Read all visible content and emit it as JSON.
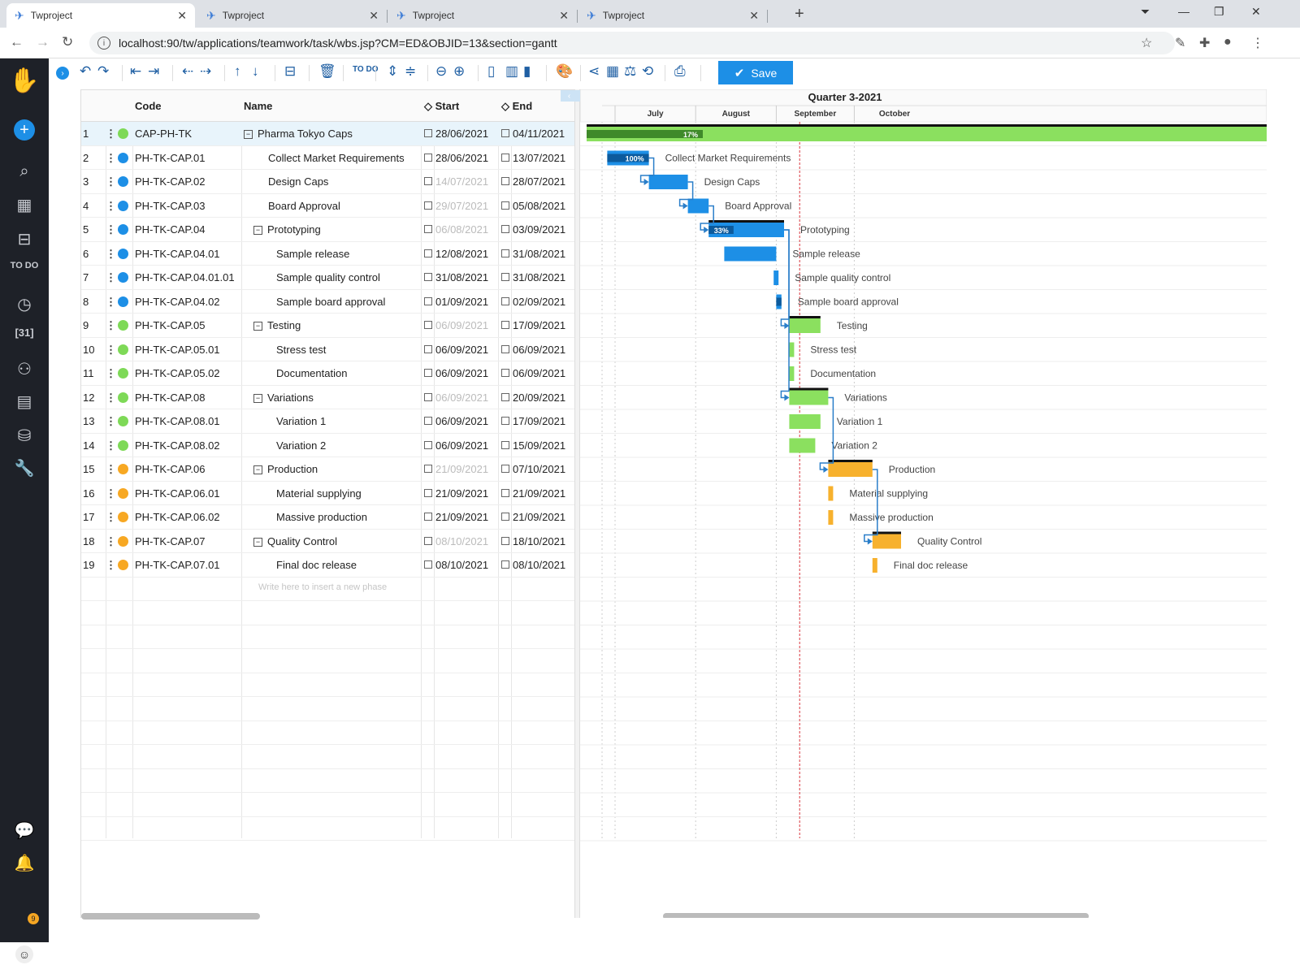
{
  "browser": {
    "tabs": [
      {
        "title": "Twproject"
      },
      {
        "title": "Twproject"
      },
      {
        "title": "Twproject"
      },
      {
        "title": "Twproject"
      }
    ],
    "url": "localhost:90/tw/applications/teamwork/task/wbs.jsp?CM=ED&OBJID=13&section=gantt"
  },
  "sidebar": {
    "items": [
      {
        "icon": "logo-icon"
      },
      {
        "icon": "add-icon"
      },
      {
        "icon": "search-icon"
      },
      {
        "icon": "dashboard-icon"
      },
      {
        "icon": "briefcase-icon"
      },
      {
        "icon": "todo-icon",
        "label": "TO DO"
      },
      {
        "icon": "clock-icon"
      },
      {
        "icon": "calendar-icon",
        "label": "31"
      },
      {
        "icon": "people-icon"
      },
      {
        "icon": "document-icon"
      },
      {
        "icon": "coins-icon"
      },
      {
        "icon": "wrench-icon"
      },
      {
        "icon": "chat-icon"
      },
      {
        "icon": "bell-icon"
      },
      {
        "icon": "avatar-icon"
      }
    ],
    "notification_count": "9"
  },
  "toolbar": {
    "save_label": "Save",
    "todo_label": "TO DO"
  },
  "grid": {
    "headers": {
      "code": "Code",
      "name": "Name",
      "start": "Start",
      "end": "End"
    },
    "rows": [
      {
        "num": "1",
        "color": "#7ed957",
        "code": "CAP-PH-TK",
        "name": "Pharma Tokyo Caps",
        "level": 0,
        "parent": true,
        "start": "28/06/2021",
        "start_grey": false,
        "end": "04/11/2021"
      },
      {
        "num": "2",
        "color": "#1d8fe6",
        "code": "PH-TK-CAP.01",
        "name": "Collect Market Requirements",
        "level": 1,
        "parent": false,
        "start": "28/06/2021",
        "start_grey": false,
        "end": "13/07/2021"
      },
      {
        "num": "3",
        "color": "#1d8fe6",
        "code": "PH-TK-CAP.02",
        "name": "Design Caps",
        "level": 1,
        "parent": false,
        "start": "14/07/2021",
        "start_grey": true,
        "end": "28/07/2021"
      },
      {
        "num": "4",
        "color": "#1d8fe6",
        "code": "PH-TK-CAP.03",
        "name": "Board Approval",
        "level": 1,
        "parent": false,
        "start": "29/07/2021",
        "start_grey": true,
        "end": "05/08/2021"
      },
      {
        "num": "5",
        "color": "#1d8fe6",
        "code": "PH-TK-CAP.04",
        "name": "Prototyping",
        "level": 1,
        "parent": true,
        "start": "06/08/2021",
        "start_grey": true,
        "end": "03/09/2021"
      },
      {
        "num": "6",
        "color": "#1d8fe6",
        "code": "PH-TK-CAP.04.01",
        "name": "Sample release",
        "level": 2,
        "parent": false,
        "start": "12/08/2021",
        "start_grey": false,
        "end": "31/08/2021"
      },
      {
        "num": "7",
        "color": "#1d8fe6",
        "code": "PH-TK-CAP.04.01.01",
        "name": "Sample quality control",
        "level": 2,
        "parent": false,
        "start": "31/08/2021",
        "start_grey": false,
        "end": "31/08/2021"
      },
      {
        "num": "8",
        "color": "#1d8fe6",
        "code": "PH-TK-CAP.04.02",
        "name": "Sample board approval",
        "level": 2,
        "parent": false,
        "start": "01/09/2021",
        "start_grey": false,
        "end": "02/09/2021"
      },
      {
        "num": "9",
        "color": "#7ed957",
        "code": "PH-TK-CAP.05",
        "name": "Testing",
        "level": 1,
        "parent": true,
        "start": "06/09/2021",
        "start_grey": true,
        "end": "17/09/2021"
      },
      {
        "num": "10",
        "color": "#7ed957",
        "code": "PH-TK-CAP.05.01",
        "name": "Stress test",
        "level": 2,
        "parent": false,
        "start": "06/09/2021",
        "start_grey": false,
        "end": "06/09/2021"
      },
      {
        "num": "11",
        "color": "#7ed957",
        "code": "PH-TK-CAP.05.02",
        "name": "Documentation",
        "level": 2,
        "parent": false,
        "start": "06/09/2021",
        "start_grey": false,
        "end": "06/09/2021"
      },
      {
        "num": "12",
        "color": "#7ed957",
        "code": "PH-TK-CAP.08",
        "name": "Variations",
        "level": 1,
        "parent": true,
        "start": "06/09/2021",
        "start_grey": true,
        "end": "20/09/2021"
      },
      {
        "num": "13",
        "color": "#7ed957",
        "code": "PH-TK-CAP.08.01",
        "name": "Variation 1",
        "level": 2,
        "parent": false,
        "start": "06/09/2021",
        "start_grey": false,
        "end": "17/09/2021"
      },
      {
        "num": "14",
        "color": "#7ed957",
        "code": "PH-TK-CAP.08.02",
        "name": "Variation 2",
        "level": 2,
        "parent": false,
        "start": "06/09/2021",
        "start_grey": false,
        "end": "15/09/2021"
      },
      {
        "num": "15",
        "color": "#f7a823",
        "code": "PH-TK-CAP.06",
        "name": "Production",
        "level": 1,
        "parent": true,
        "start": "21/09/2021",
        "start_grey": true,
        "end": "07/10/2021"
      },
      {
        "num": "16",
        "color": "#f7a823",
        "code": "PH-TK-CAP.06.01",
        "name": "Material supplying",
        "level": 2,
        "parent": false,
        "start": "21/09/2021",
        "start_grey": false,
        "end": "21/09/2021"
      },
      {
        "num": "17",
        "color": "#f7a823",
        "code": "PH-TK-CAP.06.02",
        "name": "Massive production",
        "level": 2,
        "parent": false,
        "start": "21/09/2021",
        "start_grey": false,
        "end": "21/09/2021"
      },
      {
        "num": "18",
        "color": "#f7a823",
        "code": "PH-TK-CAP.07",
        "name": "Quality Control",
        "level": 1,
        "parent": true,
        "start": "08/10/2021",
        "start_grey": true,
        "end": "18/10/2021"
      },
      {
        "num": "19",
        "color": "#f7a823",
        "code": "PH-TK-CAP.07.01",
        "name": "Final doc release",
        "level": 2,
        "parent": false,
        "start": "08/10/2021",
        "start_grey": false,
        "end": "08/10/2021"
      }
    ],
    "new_phase_placeholder": "Write here to insert a new phase"
  },
  "gantt": {
    "quarter_label": "Quarter 3-2021",
    "months": [
      "July",
      "August",
      "September",
      "October"
    ],
    "today": "10/09/2021",
    "bars": [
      {
        "row": 1,
        "start": "28/06/2021",
        "end": "04/11/2021",
        "color": "#8be05f",
        "progress_color": "#3f8a2a",
        "progress": 17,
        "progress_label": "17%",
        "summary": true,
        "label": ""
      },
      {
        "row": 2,
        "start": "28/06/2021",
        "end": "13/07/2021",
        "color": "#1d8fe6",
        "progress_color": "#0c5a9c",
        "progress": 100,
        "progress_label": "100%",
        "summary": false,
        "label": "Collect Market Requirements"
      },
      {
        "row": 3,
        "start": "14/07/2021",
        "end": "28/07/2021",
        "color": "#1d8fe6",
        "progress": 0,
        "summary": false,
        "label": "Design Caps"
      },
      {
        "row": 4,
        "start": "29/07/2021",
        "end": "05/08/2021",
        "color": "#1d8fe6",
        "progress": 0,
        "summary": false,
        "label": "Board Approval"
      },
      {
        "row": 5,
        "start": "06/08/2021",
        "end": "03/09/2021",
        "color": "#1d8fe6",
        "progress_color": "#0c5a9c",
        "progress": 33,
        "progress_label": "33%",
        "summary": true,
        "label": "Prototyping"
      },
      {
        "row": 6,
        "start": "12/08/2021",
        "end": "31/08/2021",
        "color": "#1d8fe6",
        "progress": 0,
        "summary": false,
        "label": "Sample release"
      },
      {
        "row": 7,
        "start": "31/08/2021",
        "end": "31/08/2021",
        "color": "#1d8fe6",
        "progress": 0,
        "summary": false,
        "label": "Sample quality control"
      },
      {
        "row": 8,
        "start": "01/09/2021",
        "end": "02/09/2021",
        "color": "#1d8fe6",
        "progress_color": "#0c5a9c",
        "progress": 100,
        "summary": false,
        "label": "Sample board approval"
      },
      {
        "row": 9,
        "start": "06/09/2021",
        "end": "17/09/2021",
        "color": "#8be05f",
        "progress": 0,
        "summary": true,
        "label": "Testing"
      },
      {
        "row": 10,
        "start": "06/09/2021",
        "end": "06/09/2021",
        "color": "#8be05f",
        "progress": 0,
        "summary": false,
        "label": "Stress test"
      },
      {
        "row": 11,
        "start": "06/09/2021",
        "end": "06/09/2021",
        "color": "#8be05f",
        "progress": 0,
        "summary": false,
        "label": "Documentation"
      },
      {
        "row": 12,
        "start": "06/09/2021",
        "end": "20/09/2021",
        "color": "#8be05f",
        "progress": 0,
        "summary": true,
        "label": "Variations"
      },
      {
        "row": 13,
        "start": "06/09/2021",
        "end": "17/09/2021",
        "color": "#8be05f",
        "progress": 0,
        "summary": false,
        "label": "Variation 1"
      },
      {
        "row": 14,
        "start": "06/09/2021",
        "end": "15/09/2021",
        "color": "#8be05f",
        "progress": 0,
        "summary": false,
        "label": "Variation 2"
      },
      {
        "row": 15,
        "start": "21/09/2021",
        "end": "07/10/2021",
        "color": "#f7b12d",
        "progress": 0,
        "summary": true,
        "label": "Production"
      },
      {
        "row": 16,
        "start": "21/09/2021",
        "end": "21/09/2021",
        "color": "#f7b12d",
        "progress": 0,
        "summary": false,
        "label": "Material supplying"
      },
      {
        "row": 17,
        "start": "21/09/2021",
        "end": "21/09/2021",
        "color": "#f7b12d",
        "progress": 0,
        "summary": false,
        "label": "Massive production"
      },
      {
        "row": 18,
        "start": "08/10/2021",
        "end": "18/10/2021",
        "color": "#f7b12d",
        "progress": 0,
        "summary": true,
        "label": "Quality Control"
      },
      {
        "row": 19,
        "start": "08/10/2021",
        "end": "08/10/2021",
        "color": "#f7b12d",
        "progress": 0,
        "summary": false,
        "label": "Final doc release"
      }
    ],
    "dependencies": [
      {
        "from": 2,
        "to": 3
      },
      {
        "from": 3,
        "to": 4
      },
      {
        "from": 4,
        "to": 5
      },
      {
        "from": 5,
        "to": 9
      },
      {
        "from": 5,
        "to": 12
      },
      {
        "from": 12,
        "to": 15
      },
      {
        "from": 15,
        "to": 18
      }
    ]
  }
}
